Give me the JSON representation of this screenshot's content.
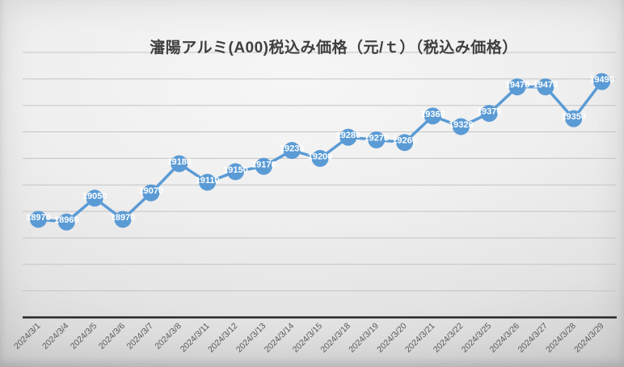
{
  "page": {
    "title": "瀋陽アルミ(A00)税込み価格（元/ｔ）（税込み価格）"
  },
  "colors": {
    "series": "#5B9BD5",
    "axis": "#262626",
    "gridline": "#c4c4c4",
    "tick_label": "#595959",
    "data_label": "#ffffff",
    "title": "#3f3f3f"
  },
  "chart_data": {
    "type": "line",
    "title": "瀋陽アルミ(A00)税込み価格（元/ｔ）（税込み価格）",
    "categories": [
      "2024/3/1",
      "2024/3/4",
      "2024/3/5",
      "2024/3/6",
      "2024/3/7",
      "2024/3/8",
      "2024/3/11",
      "2024/3/12",
      "2024/3/13",
      "2024/3/14",
      "2024/3/15",
      "2024/3/18",
      "2024/3/19",
      "2024/3/20",
      "2024/3/21",
      "2024/3/22",
      "2024/3/25",
      "2024/3/26",
      "2024/3/27",
      "2024/3/28",
      "2024/3/29"
    ],
    "values": [
      18970,
      18960,
      19050,
      18970,
      19070,
      19180,
      19110,
      19150,
      19170,
      19230,
      19200,
      19280,
      19270,
      19260,
      19360,
      19320,
      19370,
      19470,
      19470,
      19350,
      19490
    ],
    "xlabel": "",
    "ylabel": "",
    "ylim": [
      18600,
      19600
    ],
    "y_major_unit": 100,
    "grid": true,
    "y_axis_labels_visible": false,
    "legend": "none",
    "data_labels": "center",
    "marker": "circle",
    "x_tick_rotation": 45
  }
}
